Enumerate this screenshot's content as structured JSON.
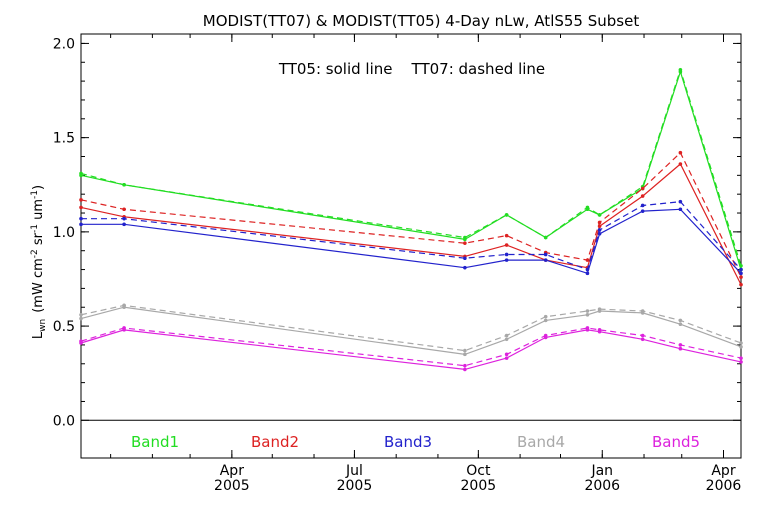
{
  "chart_data": {
    "type": "line",
    "title": "MODIST(TT07) & MODIST(TT05) 4-Day nLw, AtlS55 Subset",
    "annotation": "TT05: solid line    TT07: dashed line",
    "ylabel": "L",
    "ylabel_sub": "wn",
    "ylabel_units": "(mW cm",
    "ylabel_units_rest": " sr",
    "ylabel_units_end": " um",
    "ylabel_sup": "-2",
    "ylabel_sup2": "-1",
    "ylabel_sup3": "-1",
    "ylim": [
      -0.2,
      2.05
    ],
    "xlim": [
      "2004-12-10",
      "2006-04-14"
    ],
    "yticks": [
      "0.0",
      "0.5",
      "1.0",
      "1.5",
      "2.0"
    ],
    "yticks_values": [
      0.0,
      0.5,
      1.0,
      1.5,
      2.0
    ],
    "zero_line": true,
    "xticks": [
      {
        "date": "2005-04-01",
        "month": "Apr",
        "year": "2005"
      },
      {
        "date": "2005-07-01",
        "month": "Jul",
        "year": "2005"
      },
      {
        "date": "2005-10-01",
        "month": "Oct",
        "year": "2005"
      },
      {
        "date": "2006-01-01",
        "month": "Jan",
        "year": "2006"
      },
      {
        "date": "2006-04-01",
        "month": "Apr",
        "year": "2006"
      }
    ],
    "x": [
      "2004-12-10",
      "2005-01-11",
      "2005-09-21",
      "2005-10-22",
      "2005-11-20",
      "2005-12-21",
      "2005-12-30",
      "2006-01-31",
      "2006-02-28",
      "2006-04-14"
    ],
    "series": [
      {
        "name": "Band1",
        "color": "#22dd22",
        "solid": [
          1.3,
          1.25,
          0.96,
          1.09,
          0.97,
          1.12,
          1.09,
          1.23,
          1.85,
          0.8
        ],
        "dashed": [
          1.31,
          1.25,
          0.97,
          1.09,
          0.97,
          1.13,
          1.09,
          1.24,
          1.86,
          0.82
        ]
      },
      {
        "name": "Band2",
        "color": "#dd2222",
        "solid": [
          1.13,
          1.08,
          0.87,
          0.93,
          0.85,
          0.81,
          1.03,
          1.19,
          1.36,
          0.72
        ],
        "dashed": [
          1.17,
          1.12,
          0.94,
          0.98,
          0.89,
          0.85,
          1.05,
          1.23,
          1.42,
          0.76
        ]
      },
      {
        "name": "Band3",
        "color": "#2222cc",
        "solid": [
          1.04,
          1.04,
          0.81,
          0.85,
          0.85,
          0.78,
          0.99,
          1.11,
          1.12,
          0.78
        ],
        "dashed": [
          1.07,
          1.07,
          0.86,
          0.88,
          0.88,
          0.8,
          1.01,
          1.14,
          1.16,
          0.8
        ]
      },
      {
        "name": "Band4",
        "color": "#a8a8a8",
        "solid": [
          0.54,
          0.6,
          0.35,
          0.43,
          0.53,
          0.56,
          0.58,
          0.57,
          0.51,
          0.39
        ],
        "dashed": [
          0.56,
          0.61,
          0.37,
          0.45,
          0.55,
          0.58,
          0.59,
          0.58,
          0.53,
          0.41
        ]
      },
      {
        "name": "Band5",
        "color": "#dd22dd",
        "solid": [
          0.41,
          0.48,
          0.27,
          0.33,
          0.44,
          0.48,
          0.47,
          0.43,
          0.38,
          0.31
        ],
        "dashed": [
          0.42,
          0.49,
          0.29,
          0.35,
          0.45,
          0.49,
          0.48,
          0.45,
          0.4,
          0.33
        ]
      }
    ],
    "legend_placement": "bottom inside plot"
  }
}
